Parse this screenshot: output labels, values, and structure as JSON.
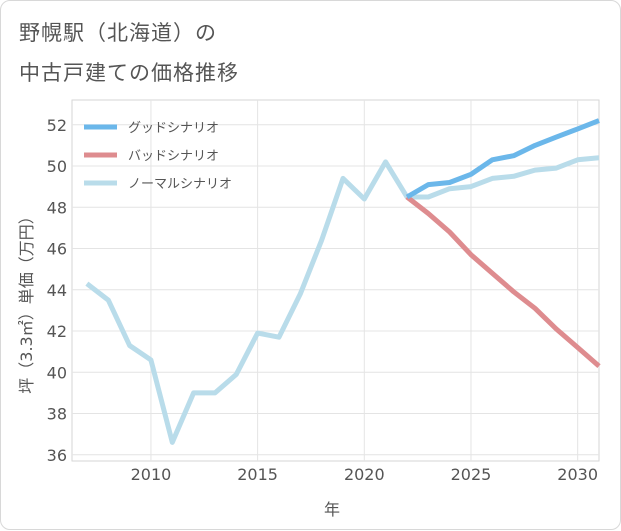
{
  "title_line1": "野幌駅（北海道）の",
  "title_line2": "中古戸建ての価格推移",
  "chart_data": {
    "type": "line",
    "title": "野幌駅（北海道）の中古戸建ての価格推移",
    "xlabel": "年",
    "ylabel": "坪（3.3㎡）単価（万円）",
    "xlim": [
      2006.3,
      2031
    ],
    "ylim": [
      35.7,
      53.2
    ],
    "x_ticks": [
      2010,
      2015,
      2020,
      2025,
      2030
    ],
    "y_ticks": [
      36,
      38,
      40,
      42,
      44,
      46,
      48,
      50,
      52
    ],
    "grid": true,
    "legend_position": "top-left",
    "series": [
      {
        "name": "グッドシナリオ",
        "color": "#6bb7ea",
        "x": [
          2022,
          2023,
          2024,
          2025,
          2026,
          2027,
          2028,
          2029,
          2030,
          2031
        ],
        "y": [
          48.5,
          49.1,
          49.2,
          49.6,
          50.3,
          50.5,
          51.0,
          51.4,
          51.8,
          52.2
        ]
      },
      {
        "name": "バッドシナリオ",
        "color": "#de8c8f",
        "x": [
          2022,
          2023,
          2024,
          2025,
          2026,
          2027,
          2028,
          2029,
          2030,
          2031
        ],
        "y": [
          48.5,
          47.7,
          46.8,
          45.7,
          44.8,
          43.9,
          43.1,
          42.1,
          41.2,
          40.3
        ]
      },
      {
        "name": "ノーマルシナリオ",
        "color": "#b9dcea",
        "x": [
          2007,
          2008,
          2009,
          2010,
          2011,
          2012,
          2013,
          2014,
          2015,
          2016,
          2017,
          2018,
          2019,
          2020,
          2021,
          2022,
          2023,
          2024,
          2025,
          2026,
          2027,
          2028,
          2029,
          2030,
          2031
        ],
        "y": [
          44.3,
          43.5,
          41.3,
          40.6,
          36.6,
          39.0,
          39.0,
          39.9,
          41.9,
          41.7,
          43.8,
          46.4,
          49.4,
          48.4,
          50.2,
          48.5,
          48.5,
          48.9,
          49.0,
          49.4,
          49.5,
          49.8,
          49.9,
          50.3,
          50.4
        ]
      }
    ]
  }
}
